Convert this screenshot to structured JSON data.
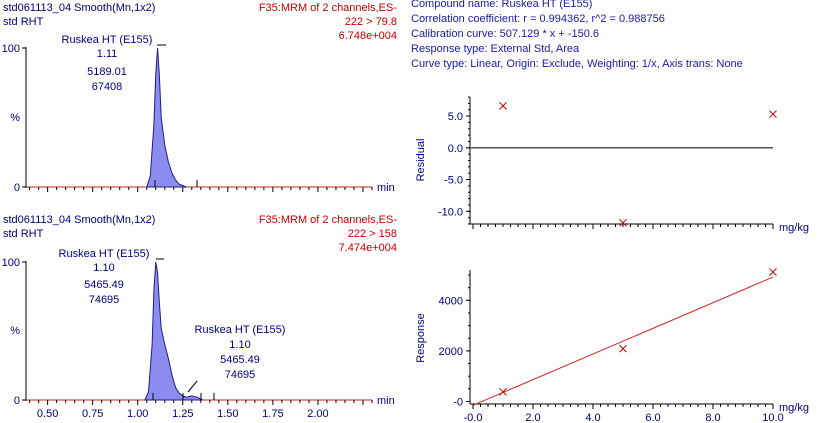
{
  "chromatograms": [
    {
      "sample": "std061113_04 Smooth(Mn,1x2)",
      "sample_sub": "std RHT",
      "function": "F35:MRM of 2 channels,ES-",
      "transition": "222 > 79.8",
      "intensity": "6.748e+004",
      "y_top_label": "100",
      "y_percent_label": "%",
      "y_zero_label": "0",
      "x_unit": "min",
      "peak_labels": [
        {
          "name": "Ruskea HT (E155)",
          "rt": "1.11",
          "area": "5189.01",
          "height": "67408"
        }
      ]
    },
    {
      "sample": "std061113_04 Smooth(Mn,1x2)",
      "sample_sub": "std RHT",
      "function": "F35:MRM of 2 channels,ES-",
      "transition": "222 > 158",
      "intensity": "7.474e+004",
      "y_top_label": "100",
      "y_percent_label": "%",
      "y_zero_label": "0",
      "x_unit": "min",
      "x_ticks": [
        "0.50",
        "0.75",
        "1.00",
        "1.25",
        "1.50",
        "1.75",
        "2.00"
      ],
      "peak_labels": [
        {
          "name": "Ruskea HT (E155)",
          "rt": "1.10",
          "area": "5465.49",
          "height": "74695"
        },
        {
          "name": "Ruskea HT (E155)",
          "rt": "1.10",
          "area": "5465.49",
          "height": "74695"
        }
      ]
    }
  ],
  "calibration_info": {
    "compound": "Compound name: Ruskea HT (E155)",
    "correlation": "Correlation coefficient: r = 0.994362, r^2 = 0.988756",
    "curve": "Calibration curve: 507.129 * x + -150.6",
    "response_type": "Response type: External Std, Area",
    "curve_type": "Curve type: Linear, Origin: Exclude, Weighting: 1/x, Axis trans: None"
  },
  "chart_data": [
    {
      "type": "area",
      "title": "std061113_04 Smooth(Mn,1x2) — 222 > 79.8",
      "xlabel": "min",
      "ylabel": "%",
      "xlim": [
        0.38,
        2.3
      ],
      "ylim": [
        0,
        100
      ],
      "x": [
        1.05,
        1.07,
        1.09,
        1.1,
        1.11,
        1.12,
        1.13,
        1.15,
        1.17,
        1.19,
        1.21,
        1.23,
        1.25,
        1.27
      ],
      "y": [
        0,
        8,
        45,
        82,
        100,
        80,
        50,
        30,
        18,
        10,
        5,
        2,
        1,
        0
      ]
    },
    {
      "type": "area",
      "title": "std061113_04 Smooth(Mn,1x2) — 222 > 158",
      "xlabel": "min",
      "ylabel": "%",
      "xlim": [
        0.38,
        2.3
      ],
      "ylim": [
        0,
        100
      ],
      "x_ticks": [
        0.5,
        0.75,
        1.0,
        1.25,
        1.5,
        1.75,
        2.0
      ],
      "x": [
        1.04,
        1.06,
        1.08,
        1.09,
        1.1,
        1.11,
        1.12,
        1.13,
        1.15,
        1.17,
        1.19,
        1.21,
        1.23,
        1.25,
        1.27,
        1.3,
        1.33,
        1.36
      ],
      "y": [
        0,
        6,
        40,
        80,
        100,
        92,
        70,
        52,
        40,
        30,
        18,
        9,
        5,
        3,
        2,
        3,
        2,
        0
      ]
    },
    {
      "type": "scatter",
      "title": "Residual",
      "xlabel": "mg/kg",
      "ylabel": "Residual",
      "xlim": [
        -0.1,
        10.0
      ],
      "ylim": [
        -12.0,
        8.0
      ],
      "y_ticks": [
        5.0,
        0.0,
        -5.0,
        -10.0
      ],
      "zero_line": true,
      "points": [
        {
          "x": 1.0,
          "y": 6.6
        },
        {
          "x": 5.0,
          "y": -11.8
        },
        {
          "x": 10.0,
          "y": 5.3
        }
      ]
    },
    {
      "type": "scatter",
      "title": "Response",
      "xlabel": "mg/kg",
      "ylabel": "Response",
      "xlim": [
        -0.1,
        10.0
      ],
      "ylim": [
        -100,
        5200
      ],
      "x_ticks": [
        -0.0,
        2.0,
        4.0,
        6.0,
        8.0,
        10.0
      ],
      "x_tick_labels": [
        "-0.0",
        "2.0",
        "4.0",
        "6.0",
        "8.0",
        "10.0"
      ],
      "y_ticks": [
        0,
        2000,
        4000
      ],
      "y_tick_labels": [
        "-0",
        "2000",
        "4000"
      ],
      "fit_line": {
        "slope": 507.129,
        "intercept": -150.6
      },
      "points": [
        {
          "x": 1.0,
          "y": 380
        },
        {
          "x": 5.0,
          "y": 2090
        },
        {
          "x": 10.0,
          "y": 5120
        }
      ]
    }
  ]
}
